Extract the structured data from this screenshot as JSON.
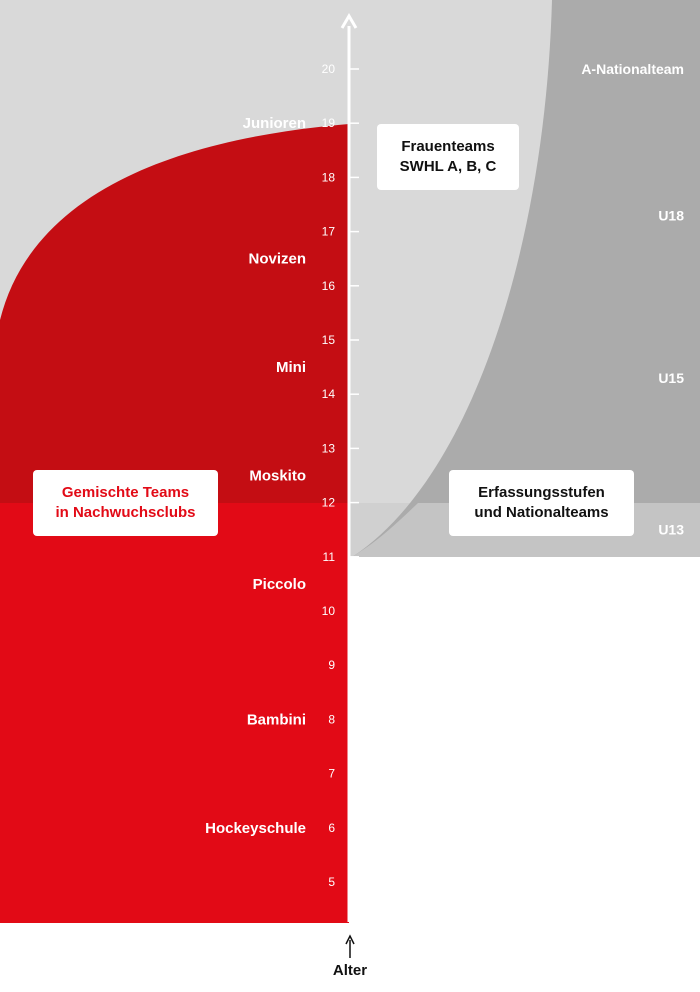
{
  "axis": {
    "title": "Alter",
    "ticks": [
      5,
      6,
      7,
      8,
      9,
      10,
      11,
      12,
      13,
      14,
      15,
      16,
      17,
      18,
      19,
      20
    ]
  },
  "club_levels": [
    {
      "label": "Hockeyschule",
      "age": 6
    },
    {
      "label": "Bambini",
      "age": 8
    },
    {
      "label": "Piccolo",
      "age": 10.5
    },
    {
      "label": "Moskito",
      "age": 12.5
    },
    {
      "label": "Mini",
      "age": 14.5
    },
    {
      "label": "Novizen",
      "age": 16.5
    },
    {
      "label": "Junioren",
      "age": 19
    }
  ],
  "national_levels": [
    {
      "label": "U13",
      "age": 11.5
    },
    {
      "label": "U15",
      "age": 14.3
    },
    {
      "label": "U18",
      "age": 17.3
    },
    {
      "label": "A-Nationalteam",
      "age": 20
    }
  ],
  "boxes": {
    "mixed_teams": [
      "Gemischte Teams",
      "in Nachwuchsclubs"
    ],
    "women_teams": [
      "Frauenteams",
      "SWHL A, B, C"
    ],
    "national_teams": [
      "Erfassungsstufen",
      "und Nationalteams"
    ]
  },
  "colors": {
    "red": "#e20a16",
    "dark_red": "#c40d13",
    "light_gray": "#d9d9d9",
    "mid_gray": "#c8c8c8",
    "dark_gray": "#ababab",
    "white": "#ffffff",
    "box_red_text": "#e20a16",
    "box_dark_text": "#111111"
  }
}
